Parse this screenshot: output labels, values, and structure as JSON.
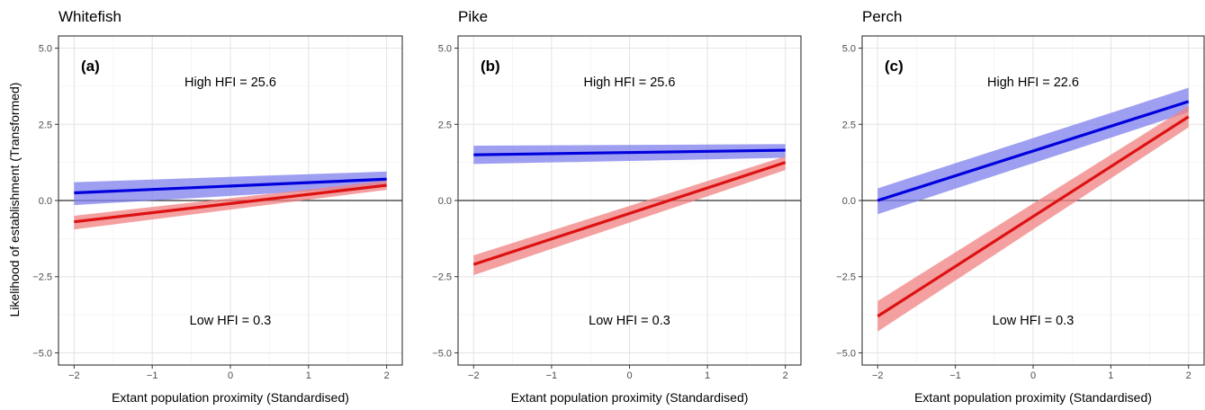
{
  "ylabel": "Likelihood of establishment (Transformed)",
  "chart_data": [
    {
      "type": "line",
      "title": "Whitefish",
      "tag": "(a)",
      "annotation_high": "High HFI  = 25.6",
      "annotation_low": "Low HFI  = 0.3",
      "xlabel": "Extant population proximity (Standardised)",
      "ylabel": "Likelihood of establishment (Transformed)",
      "xlim": [
        -2.2,
        2.2
      ],
      "ylim": [
        -5.4,
        5.4
      ],
      "xticks": [
        -2,
        -1,
        0,
        1,
        2
      ],
      "xtick_labels": [
        "−2",
        "−1",
        "0",
        "1",
        "2"
      ],
      "yticks": [
        -5,
        -2.5,
        0,
        2.5,
        5
      ],
      "ytick_labels": [
        "−5.0",
        "−2.5",
        "0.0",
        "2.5",
        "5.0"
      ],
      "reference_line": 0,
      "grid": true,
      "series": [
        {
          "color": "#0000dd",
          "ribbon_color": "#7f7fee",
          "x": [
            -2,
            2
          ],
          "y": [
            0.25,
            0.7
          ],
          "lower": [
            -0.15,
            0.45
          ],
          "upper": [
            0.6,
            0.95
          ]
        },
        {
          "color": "#dd1111",
          "ribbon_color": "#f08080",
          "x": [
            -2,
            2
          ],
          "y": [
            -0.7,
            0.5
          ],
          "lower": [
            -0.95,
            0.35
          ],
          "upper": [
            -0.5,
            0.65
          ]
        }
      ]
    },
    {
      "type": "line",
      "title": "Pike",
      "tag": "(b)",
      "annotation_high": "High HFI  = 25.6",
      "annotation_low": "Low HFI  = 0.3",
      "xlabel": "Extant population proximity (Standardised)",
      "ylabel": "",
      "xlim": [
        -2.2,
        2.2
      ],
      "ylim": [
        -5.4,
        5.4
      ],
      "xticks": [
        -2,
        -1,
        0,
        1,
        2
      ],
      "xtick_labels": [
        "−2",
        "−1",
        "0",
        "1",
        "2"
      ],
      "yticks": [
        -5,
        -2.5,
        0,
        2.5,
        5
      ],
      "ytick_labels": [
        "−5.0",
        "−2.5",
        "0.0",
        "2.5",
        "5.0"
      ],
      "reference_line": 0,
      "grid": true,
      "series": [
        {
          "color": "#0000dd",
          "ribbon_color": "#7f7fee",
          "x": [
            -2,
            2
          ],
          "y": [
            1.5,
            1.65
          ],
          "lower": [
            1.2,
            1.4
          ],
          "upper": [
            1.8,
            1.85
          ]
        },
        {
          "color": "#dd1111",
          "ribbon_color": "#f08080",
          "x": [
            -2,
            2
          ],
          "y": [
            -2.1,
            1.25
          ],
          "lower": [
            -2.45,
            1.0
          ],
          "upper": [
            -1.8,
            1.45
          ]
        }
      ]
    },
    {
      "type": "line",
      "title": "Perch",
      "tag": "(c)",
      "annotation_high": "High HFI  = 22.6",
      "annotation_low": "Low HFI  = 0.3",
      "xlabel": "Extant population proximity (Standardised)",
      "ylabel": "",
      "xlim": [
        -2.2,
        2.2
      ],
      "ylim": [
        -5.4,
        5.4
      ],
      "xticks": [
        -2,
        -1,
        0,
        1,
        2
      ],
      "xtick_labels": [
        "−2",
        "−1",
        "0",
        "1",
        "2"
      ],
      "yticks": [
        -5,
        -2.5,
        0,
        2.5,
        5
      ],
      "ytick_labels": [
        "−5.0",
        "−2.5",
        "0.0",
        "2.5",
        "5.0"
      ],
      "reference_line": 0,
      "grid": true,
      "series": [
        {
          "color": "#0000dd",
          "ribbon_color": "#7f7fee",
          "x": [
            -2,
            2
          ],
          "y": [
            0.0,
            3.25
          ],
          "lower": [
            -0.45,
            2.9
          ],
          "upper": [
            0.4,
            3.7
          ]
        },
        {
          "color": "#dd1111",
          "ribbon_color": "#f08080",
          "x": [
            -2,
            2
          ],
          "y": [
            -3.8,
            2.75
          ],
          "lower": [
            -4.3,
            2.4
          ],
          "upper": [
            -3.3,
            3.1
          ]
        }
      ]
    }
  ]
}
